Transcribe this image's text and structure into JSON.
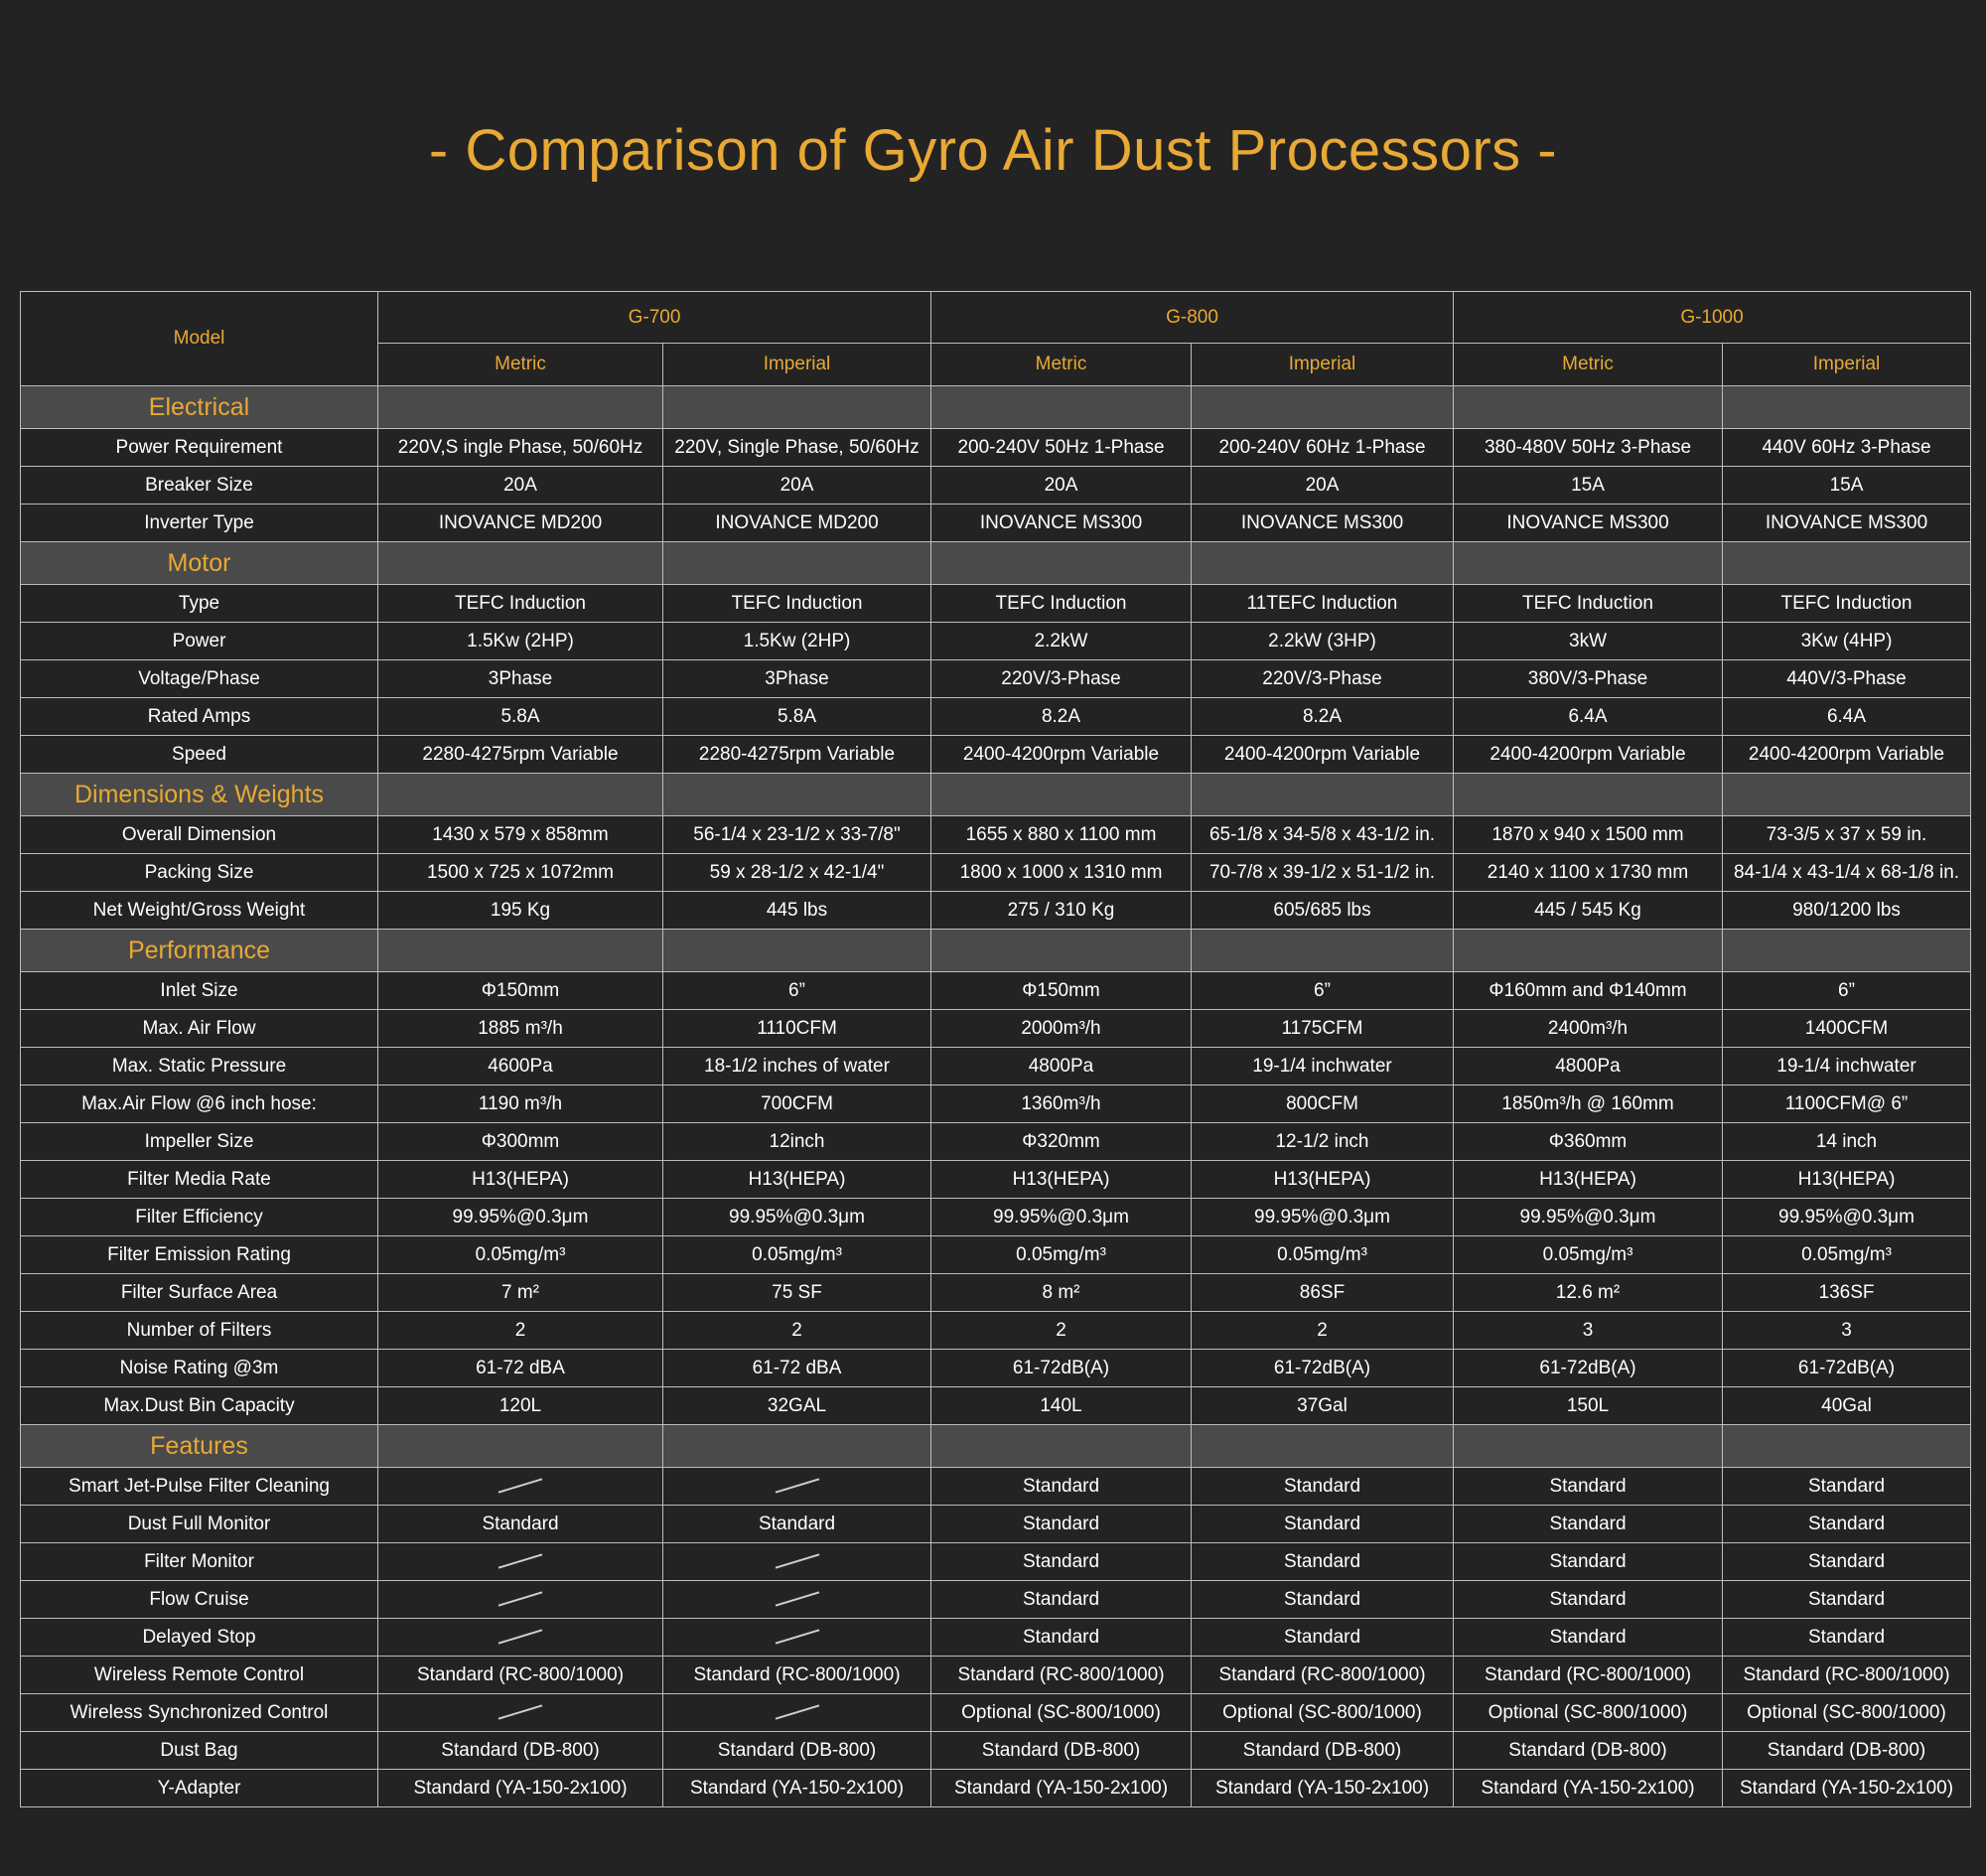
{
  "title": "- Comparison of Gyro Air Dust Processors -",
  "header": {
    "model_label": "Model",
    "models": [
      "G-700",
      "G-800",
      "G-1000"
    ],
    "units": [
      "Metric",
      "Imperial",
      "Metric",
      "Imperial",
      "Metric",
      "Imperial"
    ]
  },
  "sections": [
    {
      "name": "Electrical",
      "rows": [
        {
          "label": "Power Requirement",
          "values": [
            "220V,S ingle Phase, 50/60Hz",
            "220V, Single Phase, 50/60Hz",
            "200-240V 50Hz  1-Phase",
            "200-240V 60Hz  1-Phase",
            "380-480V 50Hz 3-Phase",
            "440V 60Hz 3-Phase"
          ]
        },
        {
          "label": "Breaker Size",
          "values": [
            "20A",
            "20A",
            "20A",
            "20A",
            "15A",
            "15A"
          ]
        },
        {
          "label": "Inverter Type",
          "values": [
            "INOVANCE MD200",
            "INOVANCE MD200",
            "INOVANCE MS300",
            "INOVANCE MS300",
            "INOVANCE MS300",
            "INOVANCE MS300"
          ]
        }
      ]
    },
    {
      "name": "Motor",
      "rows": [
        {
          "label": "Type",
          "values": [
            "TEFC Induction",
            "TEFC Induction",
            "TEFC Induction",
            "11TEFC Induction",
            "TEFC Induction",
            "TEFC Induction"
          ]
        },
        {
          "label": "Power",
          "values": [
            "1.5Kw (2HP)",
            "1.5Kw (2HP)",
            "2.2kW",
            "2.2kW  (3HP)",
            "3kW",
            "3Kw (4HP)"
          ]
        },
        {
          "label": "Voltage/Phase",
          "values": [
            "3Phase",
            "3Phase",
            "220V/3-Phase",
            "220V/3-Phase",
            "380V/3-Phase",
            "440V/3-Phase"
          ]
        },
        {
          "label": "Rated Amps",
          "values": [
            "5.8A",
            "5.8A",
            "8.2A",
            "8.2A",
            "6.4A",
            "6.4A"
          ]
        },
        {
          "label": "Speed",
          "values": [
            "2280-4275rpm Variable",
            "2280-4275rpm Variable",
            "2400-4200rpm Variable",
            "2400-4200rpm Variable",
            "2400-4200rpm Variable",
            "2400-4200rpm Variable"
          ]
        }
      ]
    },
    {
      "name": "Dimensions & Weights",
      "rows": [
        {
          "label": "Overall Dimension",
          "values": [
            "1430 x 579 x 858mm",
            "56-1/4 x 23-1/2 x 33-7/8\"",
            "1655 x 880 x 1100 mm",
            "65-1/8 x 34-5/8 x 43-1/2 in.",
            "1870 x 940 x 1500 mm",
            "73-3/5 x 37 x 59 in."
          ]
        },
        {
          "label": "Packing Size",
          "values": [
            "1500 x 725 x 1072mm",
            "59 x 28-1/2 x 42-1/4\"",
            "1800 x 1000 x 1310 mm",
            "70-7/8 x 39-1/2 x 51-1/2 in.",
            "2140 x 1100 x 1730 mm",
            "84-1/4 x 43-1/4 x 68-1/8 in."
          ]
        },
        {
          "label": "Net Weight/Gross Weight",
          "values": [
            "195 Kg",
            "445 lbs",
            "275 / 310 Kg",
            "605/685 lbs",
            "445 / 545 Kg",
            "980/1200 lbs"
          ]
        }
      ]
    },
    {
      "name": "Performance",
      "rows": [
        {
          "label": "Inlet Size",
          "values": [
            "Φ150mm",
            "6”",
            "Φ150mm",
            "6”",
            "Φ160mm and Φ140mm",
            "6”"
          ]
        },
        {
          "label": "Max. Air Flow",
          "values": [
            "1885 m³/h",
            "1110CFM",
            "2000m³/h",
            "1175CFM",
            "2400m³/h",
            "1400CFM"
          ]
        },
        {
          "label": "Max. Static Pressure",
          "values": [
            "4600Pa",
            "18-1/2 inches of water",
            "4800Pa",
            "19-1/4 inchwater",
            "4800Pa",
            "19-1/4 inchwater"
          ]
        },
        {
          "label": "Max.Air Flow @6  inch hose:",
          "values": [
            "1190 m³/h",
            "700CFM",
            "1360m³/h",
            "800CFM",
            "1850m³/h @ 160mm",
            "1100CFM@ 6”"
          ]
        },
        {
          "label": "Impeller Size",
          "values": [
            "Φ300mm",
            "12inch",
            "Φ320mm",
            "12-1/2 inch",
            "Φ360mm",
            "14 inch"
          ]
        },
        {
          "label": "Filter Media Rate",
          "values": [
            "H13(HEPA)",
            "H13(HEPA)",
            "H13(HEPA)",
            "H13(HEPA)",
            "H13(HEPA)",
            "H13(HEPA)"
          ]
        },
        {
          "label": "Filter Efficiency",
          "values": [
            "99.95%@0.3μm",
            "99.95%@0.3μm",
            "99.95%@0.3μm",
            "99.95%@0.3μm",
            "99.95%@0.3μm",
            "99.95%@0.3μm"
          ]
        },
        {
          "label": "Filter Emission Rating",
          "values": [
            "0.05mg/m³",
            "0.05mg/m³",
            "0.05mg/m³",
            "0.05mg/m³",
            "0.05mg/m³",
            "0.05mg/m³"
          ]
        },
        {
          "label": "Filter Surface Area",
          "values": [
            "7 m²",
            "75 SF",
            "8 m²",
            "86SF",
            "12.6 m²",
            "136SF"
          ]
        },
        {
          "label": "Number of Filters",
          "values": [
            "2",
            "2",
            "2",
            "2",
            "3",
            "3"
          ]
        },
        {
          "label": "Noise Rating @3m",
          "values": [
            "61-72 dBA",
            "61-72 dBA",
            "61-72dB(A)",
            "61-72dB(A)",
            "61-72dB(A)",
            "61-72dB(A)"
          ]
        },
        {
          "label": "Max.Dust Bin Capacity",
          "values": [
            "120L",
            "32GAL",
            "140L",
            "37Gal",
            "150L",
            "40Gal"
          ]
        }
      ]
    },
    {
      "name": "Features",
      "rows": [
        {
          "label": "Smart Jet-Pulse Filter Cleaning",
          "values": [
            "",
            "",
            "Standard",
            "Standard",
            "Standard",
            "Standard"
          ]
        },
        {
          "label": "Dust Full Monitor",
          "values": [
            "Standard",
            "Standard",
            "Standard",
            "Standard",
            "Standard",
            "Standard"
          ]
        },
        {
          "label": "Filter Monitor",
          "values": [
            "",
            "",
            "Standard",
            "Standard",
            "Standard",
            "Standard"
          ]
        },
        {
          "label": "Flow Cruise",
          "values": [
            "",
            "",
            "Standard",
            "Standard",
            "Standard",
            "Standard"
          ]
        },
        {
          "label": "Delayed Stop",
          "values": [
            "",
            "",
            "Standard",
            "Standard",
            "Standard",
            "Standard"
          ]
        },
        {
          "label": "Wireless Remote Control",
          "values": [
            "Standard (RC-800/1000)",
            "Standard (RC-800/1000)",
            "Standard (RC-800/1000)",
            "Standard (RC-800/1000)",
            "Standard (RC-800/1000)",
            "Standard (RC-800/1000)"
          ]
        },
        {
          "label": "Wireless Synchronized Control",
          "values": [
            "",
            "",
            "Optional (SC-800/1000)",
            "Optional (SC-800/1000)",
            "Optional (SC-800/1000)",
            "Optional (SC-800/1000)"
          ]
        },
        {
          "label": "Dust Bag",
          "values": [
            "Standard (DB-800)",
            "Standard (DB-800)",
            "Standard (DB-800)",
            "Standard (DB-800)",
            "Standard (DB-800)",
            "Standard (DB-800)"
          ]
        },
        {
          "label": "Y-Adapter",
          "values": [
            "Standard (YA-150-2x100)",
            "Standard (YA-150-2x100)",
            "Standard (YA-150-2x100)",
            "Standard (YA-150-2x100)",
            "Standard (YA-150-2x100)",
            "Standard (YA-150-2x100)"
          ]
        }
      ]
    }
  ]
}
